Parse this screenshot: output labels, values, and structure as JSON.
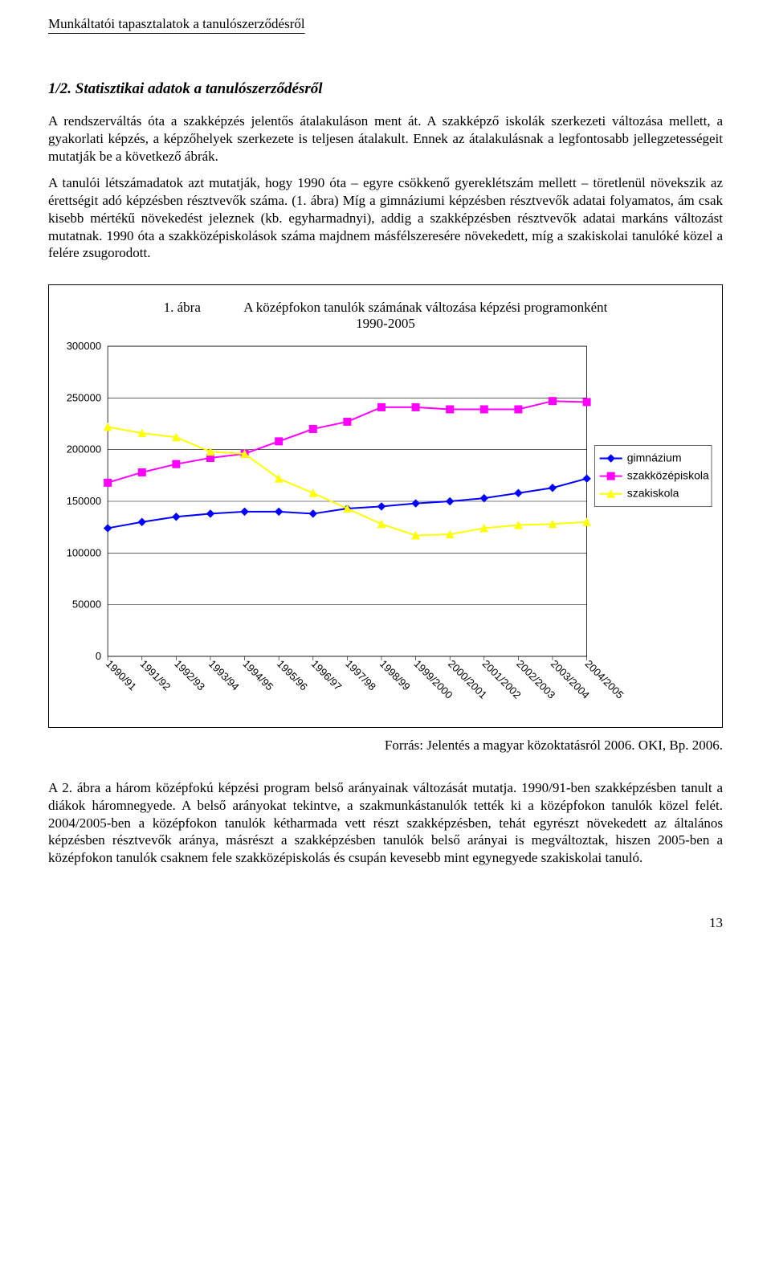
{
  "header": "Munkáltatói tapasztalatok a tanulószerződésről",
  "section_heading": "1/2. Statisztikai adatok a tanulószerződésről",
  "para1": "A rendszerváltás óta a szakképzés jelentős átalakuláson ment át. A szakképző iskolák szerkezeti változása mellett, a gyakorlati képzés, a képzőhelyek szerkezete is teljesen átalakult. Ennek az átalakulásnak a legfontosabb jellegzetességeit mutatják be a következő ábrák.",
  "para2": "A tanulói létszámadatok azt mutatják, hogy 1990 óta – egyre csökkenő gyereklétszám mellett – töretlenül növekszik az érettségit adó képzésben résztvevők száma. (1. ábra) Míg a gimnáziumi képzésben résztvevők adatai folyamatos, ám csak kisebb mértékű növekedést jeleznek (kb. egyharmadnyi), addig a szakképzésben résztvevők adatai markáns változást mutatnak. 1990 óta a szakközépiskolások száma majdnem másfélszeresére növekedett, míg a szakiskolai tanulóké közel a felére zsugorodott.",
  "chart": {
    "fig_label": "1. ábra",
    "title": "A középfokon tanulók számának változása képzési programonként",
    "subtitle": "1990-2005",
    "type": "line",
    "background_color": "#ffffff",
    "grid_color": "#000000",
    "ylim": [
      0,
      300000
    ],
    "ytick_step": 50000,
    "yticks": [
      "0",
      "50000",
      "100000",
      "150000",
      "200000",
      "250000",
      "300000"
    ],
    "x_categories": [
      "1990/91",
      "1991/92",
      "1992/93",
      "1993/94",
      "1994/95",
      "1995/96",
      "1996/97",
      "1997/98",
      "1998/99",
      "1999/2000",
      "2000/2001",
      "2001/2002",
      "2002/2003",
      "2003/2004",
      "2004/2005"
    ],
    "series": [
      {
        "name": "gimnázium",
        "color": "#0000ff",
        "marker": "diamond",
        "values": [
          124000,
          130000,
          135000,
          138000,
          140000,
          140000,
          138000,
          143000,
          145000,
          148000,
          150000,
          153000,
          158000,
          163000,
          172000
        ]
      },
      {
        "name": "szakközépiskola",
        "color": "#ff00ff",
        "marker": "square",
        "values": [
          168000,
          178000,
          186000,
          192000,
          196000,
          208000,
          220000,
          227000,
          241000,
          241000,
          239000,
          239000,
          239000,
          247000,
          246000
        ]
      },
      {
        "name": "szakiskola",
        "color": "#ffff00",
        "marker": "triangle",
        "values": [
          222000,
          216000,
          212000,
          198000,
          196000,
          172000,
          158000,
          143000,
          128000,
          117000,
          118000,
          124000,
          127000,
          128000,
          130000
        ]
      }
    ],
    "legend": {
      "items": [
        "gimnázium",
        "szakközépiskola",
        "szakiskola"
      ],
      "colors": [
        "#0000ff",
        "#ff00ff",
        "#ffff00"
      ],
      "fontsize": 14,
      "marker": [
        "diamond",
        "square",
        "triangle"
      ]
    },
    "axis_fontsize": 13,
    "line_width": 2,
    "marker_size": 9
  },
  "source": "Forrás: Jelentés a magyar közoktatásról 2006. OKI, Bp. 2006.",
  "para3": "A 2. ábra a három középfokú képzési program belső arányainak változását mutatja. 1990/91-ben szakképzésben tanult a diákok háromnegyede. A belső arányokat tekintve, a szakmunkástanulók tették ki a középfokon tanulók közel felét. 2004/2005-ben a középfokon tanulók kétharmada vett részt szakképzésben, tehát egyrészt növekedett az általános képzésben résztvevők aránya, másrészt a szakképzésben tanulók belső arányai is megváltoztak, hiszen 2005-ben a középfokon tanulók csaknem fele szakközépiskolás és csupán kevesebb mint egynegyede szakiskolai tanuló.",
  "page_number": "13"
}
